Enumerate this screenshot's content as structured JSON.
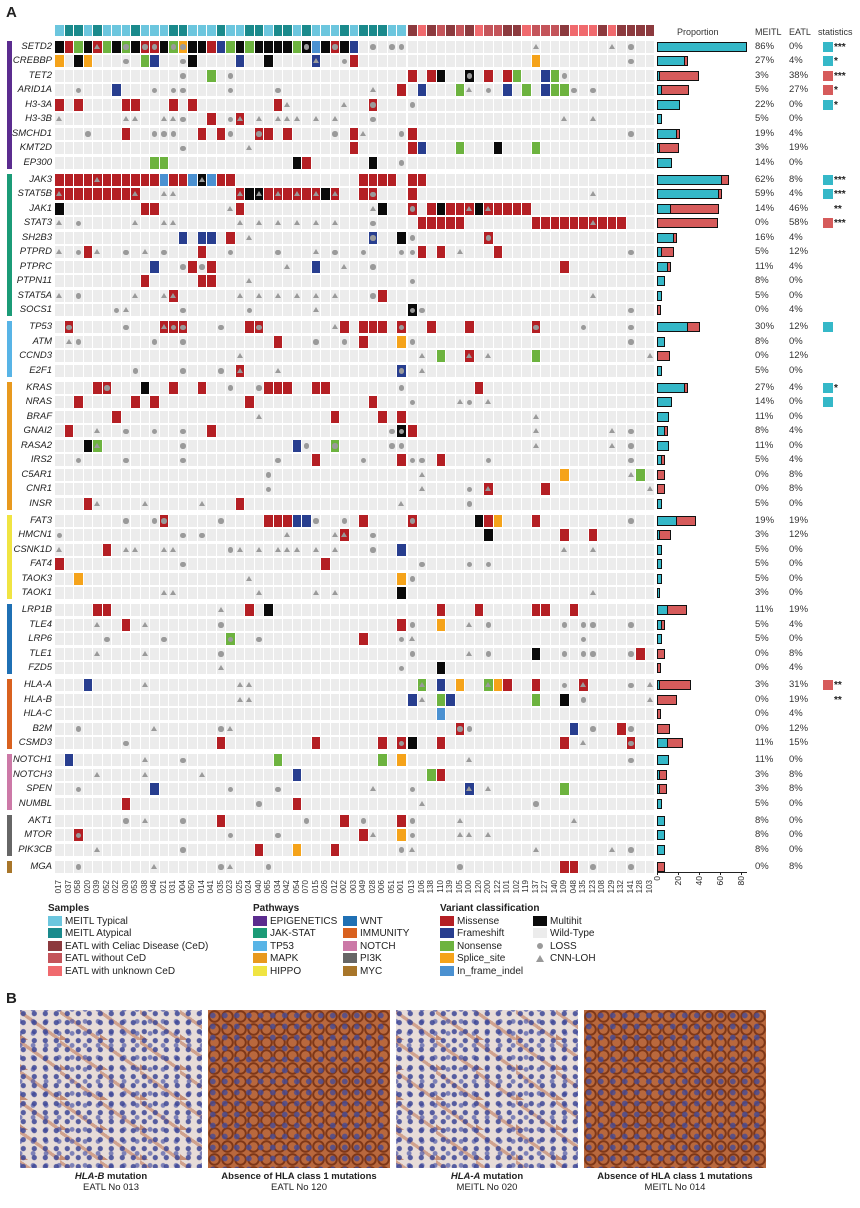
{
  "panel_a_label": "A",
  "panel_b_label": "B",
  "headers": {
    "proportion": "Proportion",
    "meitl": "MEITL",
    "eatl": "EATL",
    "statistics": "statistics"
  },
  "colors": {
    "meitl_bar": "#35b8c8",
    "eatl_bar": "#d65b5b",
    "missense": "#b41f24",
    "frameshift": "#283e8f",
    "nonsense": "#6db33f",
    "splice_site": "#f5a31a",
    "in_frame_indel": "#4b91d1",
    "multihit": "#0a0a0a",
    "wild_type": "#ececec",
    "marker": "#9a9a9a",
    "meitl_typical": "#6cc6de",
    "meitl_atypical": "#1a8a8c",
    "eatl_celiac": "#8c3a3e",
    "eatl_without_ced": "#c4545a",
    "eatl_unknown_ced": "#f06a6e"
  },
  "pathways": [
    {
      "name": "EPIGENETICS",
      "color": "#5b2c8f"
    },
    {
      "name": "JAK-STAT",
      "color": "#1b9b77"
    },
    {
      "name": "TP53",
      "color": "#58b4e6"
    },
    {
      "name": "MAPK",
      "color": "#e8991e"
    },
    {
      "name": "HIPPO",
      "color": "#f0e442"
    },
    {
      "name": "WNT",
      "color": "#1f70b4"
    },
    {
      "name": "IMMUNITY",
      "color": "#d9611f"
    },
    {
      "name": "NOTCH",
      "color": "#cc79a7"
    },
    {
      "name": "PI3K",
      "color": "#666666"
    },
    {
      "name": "MYC",
      "color": "#a8762a"
    }
  ],
  "samples": {
    "meitl_ids": [
      "017",
      "037",
      "058",
      "020",
      "039",
      "052",
      "022",
      "030",
      "053",
      "038",
      "046",
      "021",
      "031",
      "004",
      "050",
      "014",
      "041",
      "035",
      "023",
      "025",
      "024",
      "040",
      "065",
      "034",
      "042",
      "054",
      "070",
      "015",
      "026",
      "012",
      "002",
      "003",
      "049",
      "028",
      "006",
      "051",
      "001"
    ],
    "meitl_types": [
      "typical",
      "atypical",
      "atypical",
      "typical",
      "atypical",
      "typical",
      "typical",
      "typical",
      "atypical",
      "typical",
      "typical",
      "typical",
      "atypical",
      "atypical",
      "typical",
      "typical",
      "typical",
      "atypical",
      "typical",
      "typical",
      "atypical",
      "atypical",
      "typical",
      "atypical",
      "atypical",
      "typical",
      "atypical",
      "typical",
      "typical",
      "typical",
      "atypical",
      "typical",
      "atypical",
      "atypical",
      "atypical",
      "typical",
      "typical"
    ],
    "eatl_ids": [
      "013",
      "106",
      "138",
      "110",
      "139",
      "105",
      "100",
      "120",
      "200",
      "122",
      "101",
      "102",
      "119",
      "137",
      "127",
      "140",
      "109",
      "048",
      "135",
      "123",
      "108",
      "129",
      "132",
      "141",
      "128",
      "103"
    ],
    "eatl_types": [
      "celiac",
      "unknown",
      "celiac",
      "without",
      "celiac",
      "without",
      "celiac",
      "unknown",
      "without",
      "without",
      "celiac",
      "celiac",
      "unknown",
      "without",
      "without",
      "without",
      "celiac",
      "unknown",
      "unknown",
      "unknown",
      "celiac",
      "unknown",
      "celiac",
      "celiac",
      "celiac",
      "celiac"
    ]
  },
  "genes": [
    {
      "name": "SETD2",
      "pathway": 0,
      "meitl": "XMNXtNXnXmmXnsXXMFNXNXXXXNxIXmXF.o.oo",
      "eatl": ".............^.......^.o..",
      "meitl_pct": "86%",
      "eatl_pct": "0%",
      "stat_color": "#35b8c8",
      "stars": "***"
    },
    {
      "name": "CREBBP",
      "pathway": 0,
      "meitl": "S.XS...o.NF..oX....F..X....b..oM.....",
      "eatl": ".............S.........o..",
      "meitl_pct": "27%",
      "eatl_pct": "4%",
      "stat_color": "#35b8c8",
      "stars": "*"
    },
    {
      "name": "TET2",
      "pathway": 0,
      "meitl": ".............o..N.o..................",
      "eatl": "M.MX..x.M.MN..FNo.........",
      "meitl_pct": "3%",
      "eatl_pct": "38%",
      "stat_color": "#d65b5b",
      "stars": "***"
    },
    {
      "name": "ARID1A",
      "pathway": 0,
      "meitl": "..o...F...o.oo....o....o.........^..M",
      "eatl": ".F...N^.o.F.N.FNNo.o......",
      "meitl_pct": "5%",
      "eatl_pct": "27%",
      "stat_color": "#d65b5b",
      "stars": "*"
    },
    {
      "name": "H3-3A",
      "pathway": 0,
      "meitl": "M.M....MM...M.M........M^.....^..m...",
      "eatl": "o.........................",
      "meitl_pct": "22%",
      "eatl_pct": "0%",
      "stat_color": "#35b8c8",
      "stars": "*"
    },
    {
      "name": "H3-3B",
      "pathway": 0,
      "meitl": "^......^^..^^o..M.ot.^.^^^.^.^...o...",
      "eatl": "................^..^......",
      "meitl_pct": "5%",
      "eatl_pct": "0%",
      "stat_color": "",
      "stars": ""
    },
    {
      "name": "SMCHD1",
      "pathway": 0,
      "meitl": "...o...M..ooo..M.Mo..mM.M....o.M^...o",
      "eatl": "M......................o..",
      "meitl_pct": "19%",
      "eatl_pct": "4%",
      "stat_color": "",
      "stars": ""
    },
    {
      "name": "KMT2D",
      "pathway": 0,
      "meitl": ".............o......^..........M......",
      "eatl": "MF...N...X...N............",
      "meitl_pct": "3%",
      "eatl_pct": "19%",
      "stat_color": "",
      "stars": ""
    },
    {
      "name": "EP300",
      "pathway": 0,
      "meitl": "..........NN.............XM......X..o",
      "eatl": "..........................",
      "meitl_pct": "14%",
      "eatl_pct": "0%",
      "stat_color": "",
      "stars": ""
    },
    {
      "name": "JAK3",
      "pathway": 1,
      "meitl": "MMMMtMMMMMMIMMIyIMM.............MMMM.",
      "eatl": "MM........................",
      "meitl_pct": "62%",
      "eatl_pct": "8%",
      "stat_color": "#35b8c8",
      "stars": "***"
    },
    {
      "name": "STAT5B",
      "pathway": 1,
      "meitl": "tMMMMMMMt..^^......tXyMtMtMtXt..Mm...",
      "eatl": "M..................^......",
      "meitl_pct": "59%",
      "eatl_pct": "4%",
      "stat_color": "#35b8c8",
      "stars": "***"
    },
    {
      "name": "JAK1",
      "pathway": 1,
      "meitl": "X........MM.......^M.............^X..",
      "eatl": "m.MXMMtXtMMMM.............",
      "meitl_pct": "14%",
      "eatl_pct": "46%",
      "stat_color": "",
      "stars": "**"
    },
    {
      "name": "STAT3",
      "pathway": 1,
      "meitl": "^.o.....^..^^......^.^.^.^.^.^...o...",
      "eatl": ".MMMMM.......MMMMMMtMMM...",
      "meitl_pct": "0%",
      "eatl_pct": "58%",
      "stat_color": "#d65b5b",
      "stars": "***"
    },
    {
      "name": "SH2B3",
      "pathway": 1,
      "meitl": ".............F.FF.M.^............g..X",
      "eatl": "o.......m.................",
      "meitl_pct": "16%",
      "eatl_pct": "4%",
      "stat_color": "",
      "stars": ""
    },
    {
      "name": "PTPRD",
      "pathway": 1,
      "meitl": "^.oM^..o.^.o...M..o....o...^.o..o...o",
      "eatl": "oM.M.^...M.............o..",
      "meitl_pct": "5%",
      "eatl_pct": "12%",
      "stat_color": "",
      "stars": ""
    },
    {
      "name": "PTPRC",
      "pathway": 1,
      "meitl": "..........F..oMoM.......^..F..^..o...",
      "eatl": "................M.........",
      "meitl_pct": "11%",
      "eatl_pct": "4%",
      "stat_color": "",
      "stars": ""
    },
    {
      "name": "PTPN11",
      "pathway": 1,
      "meitl": ".........M.....MM...^................",
      "eatl": "o.........................",
      "meitl_pct": "8%",
      "eatl_pct": "0%",
      "stat_color": "",
      "stars": ""
    },
    {
      "name": "STAT5A",
      "pathway": 1,
      "meitl": "^.o.....^..^t......^.^.^.^.^.^...oM..",
      "eatl": "...................^......",
      "meitl_pct": "5%",
      "eatl_pct": "0%",
      "stat_color": "",
      "stars": ""
    },
    {
      "name": "SOCS1",
      "pathway": 1,
      "meitl": "......o^.....o......o......^.........",
      "eatl": "xo.....................o..",
      "meitl_pct": "0%",
      "eatl_pct": "4%",
      "stat_color": "",
      "stars": ""
    },
    {
      "name": "TP53",
      "pathway": 2,
      "meitl": ".m.....o...tmm...o..Mm.......^M.MMM.m",
      "eatl": "..M...M......m....o....o..",
      "meitl_pct": "30%",
      "eatl_pct": "12%",
      "stat_color": "#35b8c8",
      "stars": ""
    },
    {
      "name": "ATM",
      "pathway": 2,
      "meitl": ".^o.......o..o.........M...o..o.M...S",
      "eatl": "o......................o..",
      "meitl_pct": "8%",
      "eatl_pct": "0%",
      "stat_color": "",
      "stars": ""
    },
    {
      "name": "CCND3",
      "pathway": 2,
      "meitl": "...................^.................",
      "eatl": ".^.N..t.^....N...........^",
      "meitl_pct": "0%",
      "eatl_pct": "12%",
      "stat_color": "",
      "stars": ""
    },
    {
      "name": "E2F1",
      "pathway": 2,
      "meitl": "........o....o...o.t...^............g",
      "eatl": ".^........................",
      "meitl_pct": "5%",
      "eatl_pct": "0%",
      "stat_color": "",
      "stars": ""
    },
    {
      "name": "KRAS",
      "pathway": 3,
      "meitl": "....Mm...X..M..M..o..oMMM..MM.......o",
      "eatl": ".......M..................",
      "meitl_pct": "27%",
      "eatl_pct": "4%",
      "stat_color": "#35b8c8",
      "stars": "*"
    },
    {
      "name": "NRAS",
      "pathway": 3,
      "meitl": "..M.....M.M.........M............M...",
      "eatl": "o....^o.^.................",
      "meitl_pct": "14%",
      "eatl_pct": "0%",
      "stat_color": "#35b8c8",
      "stars": ""
    },
    {
      "name": "BRAF",
      "pathway": 3,
      "meitl": "......M..............^.......M....M.M",
      "eatl": ".............^............",
      "meitl_pct": "11%",
      "eatl_pct": "0%",
      "stat_color": "",
      "stars": ""
    },
    {
      "name": "GNAI2",
      "pathway": 3,
      "meitl": ".M..^..o..o..o..M..................ox",
      "eatl": "M............^.......^.o..",
      "meitl_pct": "8%",
      "eatl_pct": "4%",
      "stat_color": "",
      "stars": ""
    },
    {
      "name": "RASA2",
      "pathway": 3,
      "meitl": "...Xv........o...........Fo..n.....oo",
      "eatl": ".............^.......^.o..",
      "meitl_pct": "11%",
      "eatl_pct": "0%",
      "stat_color": "",
      "stars": ""
    },
    {
      "name": "IRS2",
      "pathway": 3,
      "meitl": "..o....o.....o.........o...M....o...M",
      "eatl": "oo.M....o..............o..",
      "meitl_pct": "5%",
      "eatl_pct": "4%",
      "stat_color": "",
      "stars": ""
    },
    {
      "name": "C5AR1",
      "pathway": 3,
      "meitl": "......................o..............",
      "eatl": ".^..............S......^N.",
      "meitl_pct": "0%",
      "eatl_pct": "8%",
      "stat_color": "",
      "stars": ""
    },
    {
      "name": "CNR1",
      "pathway": 3,
      "meitl": "......................o..............",
      "eatl": ".^....o.t.....M..........^",
      "meitl_pct": "0%",
      "eatl_pct": "8%",
      "stat_color": "",
      "stars": ""
    },
    {
      "name": "INSR",
      "pathway": 3,
      "meitl": "...M^....^.....^...M................^",
      "eatl": "......o...................",
      "meitl_pct": "5%",
      "eatl_pct": "0%",
      "stat_color": "",
      "stars": ""
    },
    {
      "name": "FAT3",
      "pathway": 4,
      "meitl": ".......o..om.....o....MMMFFo..o.M....",
      "eatl": "m......XMS...M.........o..",
      "meitl_pct": "19%",
      "eatl_pct": "19%",
      "stat_color": "",
      "stars": ""
    },
    {
      "name": "HMCN1",
      "pathway": 4,
      "meitl": "o............o.o........^....^t..o...",
      "eatl": "........X.......M..M......",
      "meitl_pct": "3%",
      "eatl_pct": "12%",
      "stat_color": "",
      "stars": ""
    },
    {
      "name": "CSNK1D",
      "pathway": 4,
      "meitl": "^....M.^^..^^.....o^.^.^^^.^.^...o..F",
      "eatl": "................^..^......",
      "meitl_pct": "5%",
      "eatl_pct": "0%",
      "stat_color": "",
      "stars": ""
    },
    {
      "name": "FAT4",
      "pathway": 4,
      "meitl": "M............o..............M........",
      "eatl": ".o....o.o.................",
      "meitl_pct": "5%",
      "eatl_pct": "0%",
      "stat_color": "",
      "stars": ""
    },
    {
      "name": "TAOK3",
      "pathway": 4,
      "meitl": "..S.................^...............S",
      "eatl": "o.........................",
      "meitl_pct": "5%",
      "eatl_pct": "0%",
      "stat_color": "",
      "stars": ""
    },
    {
      "name": "TAOK1",
      "pathway": 4,
      "meitl": "...........^^........^.....^.^......X",
      "eatl": "...................^......",
      "meitl_pct": "3%",
      "eatl_pct": "0%",
      "stat_color": "",
      "stars": ""
    },
    {
      "name": "LRP1B",
      "pathway": 5,
      "meitl": "....MM...........^..M.X..............",
      "eatl": "...M...M.....MM..M........",
      "meitl_pct": "11%",
      "eatl_pct": "19%",
      "stat_color": "",
      "stars": ""
    },
    {
      "name": "TLE4",
      "pathway": 5,
      "meitl": "....^..M.^.......o..................M",
      "eatl": "o..S..^.o.......o.oo...o..",
      "meitl_pct": "5%",
      "eatl_pct": "4%",
      "stat_color": "",
      "stars": ""
    },
    {
      "name": "LRP6",
      "pathway": 5,
      "meitl": ".....o.....o......n..o..........M...o",
      "eatl": "^.................o.......",
      "meitl_pct": "5%",
      "eatl_pct": "0%",
      "stat_color": "",
      "stars": ""
    },
    {
      "name": "TLE1",
      "pathway": 5,
      "meitl": "....^....^.......o...................",
      "eatl": "o.....^.o....X..o.oo...oM.",
      "meitl_pct": "0%",
      "eatl_pct": "8%",
      "stat_color": "",
      "stars": ""
    },
    {
      "name": "FZD5",
      "pathway": 5,
      "meitl": ".................^..................o",
      "eatl": "...X......................",
      "meitl_pct": "0%",
      "eatl_pct": "4%",
      "stat_color": "",
      "stars": ""
    },
    {
      "name": "HLA-A",
      "pathway": 6,
      "meitl": "...F.....^.........^^................",
      "eatl": ".v.F.S..vSM..M..o.t....o.^",
      "meitl_pct": "3%",
      "eatl_pct": "31%",
      "stat_color": "#d65b5b",
      "stars": "**"
    },
    {
      "name": "HLA-B",
      "pathway": 6,
      "meitl": "...................^^................",
      "eatl": "F^.NF........N..X.o......^",
      "meitl_pct": "0%",
      "eatl_pct": "19%",
      "stat_color": "",
      "stars": "**"
    },
    {
      "name": "HLA-C",
      "pathway": 6,
      "meitl": ".....................................",
      "eatl": "...I......................",
      "meitl_pct": "0%",
      "eatl_pct": "4%",
      "stat_color": "",
      "stars": ""
    },
    {
      "name": "B2M",
      "pathway": 6,
      "meitl": "..o.......^......o^..................",
      "eatl": ".....mo..........F.o..Mo..",
      "meitl_pct": "0%",
      "eatl_pct": "12%",
      "stat_color": "",
      "stars": ""
    },
    {
      "name": "CSMD3",
      "pathway": 6,
      "meitl": ".......o.........M.........M......M.m",
      "eatl": "X..M............M.^....m..",
      "meitl_pct": "11%",
      "eatl_pct": "15%",
      "stat_color": "",
      "stars": ""
    },
    {
      "name": "NOTCH1",
      "pathway": 7,
      "meitl": ".F.......^...o.........N..........N.S",
      "eatl": "......^................o..",
      "meitl_pct": "11%",
      "eatl_pct": "0%",
      "stat_color": "",
      "stars": ""
    },
    {
      "name": "NOTCH3",
      "pathway": 7,
      "meitl": "....^....^.....^.........F...........",
      "eatl": "..NM......................",
      "meitl_pct": "3%",
      "eatl_pct": "8%",
      "stat_color": "",
      "stars": ""
    },
    {
      "name": "SPEN",
      "pathway": 7,
      "meitl": "..o.......F.......o....o.........^...",
      "eatl": "o.....b.^.......N.........",
      "meitl_pct": "3%",
      "eatl_pct": "8%",
      "stat_color": "",
      "stars": ""
    },
    {
      "name": "NUMBL",
      "pathway": 7,
      "meitl": ".......M.............o...M...........",
      "eatl": ".^...........o............",
      "meitl_pct": "5%",
      "eatl_pct": "0%",
      "stat_color": "",
      "stars": ""
    },
    {
      "name": "AKT1",
      "pathway": 8,
      "meitl": ".......o.^...o...M........o...M.o...M",
      "eatl": "o....^...........^........",
      "meitl_pct": "8%",
      "eatl_pct": "0%",
      "stat_color": "",
      "stars": ""
    },
    {
      "name": "MTOR",
      "pathway": 8,
      "meitl": "..m...............o....o........M^..S",
      "eatl": "o....^^.^.................",
      "meitl_pct": "8%",
      "eatl_pct": "0%",
      "stat_color": "",
      "stars": ""
    },
    {
      "name": "PIK3CB",
      "pathway": 8,
      "meitl": "....^........o.......M...S...M......o",
      "eatl": "^............^.......^.o..",
      "meitl_pct": "8%",
      "eatl_pct": "0%",
      "stat_color": "",
      "stars": ""
    },
    {
      "name": "MGA",
      "pathway": 9,
      "meitl": "..o.......^......o^...o..............",
      "eatl": ".....o..........MM.o...o..",
      "meitl_pct": "0%",
      "eatl_pct": "8%",
      "stat_color": "",
      "stars": ""
    }
  ],
  "axis": {
    "ticks": [
      "0",
      "20",
      "40",
      "60",
      "80"
    ],
    "range": [
      0,
      90
    ]
  },
  "legend": {
    "samples_title": "Samples",
    "samples": [
      {
        "label": "MEITL Typical",
        "color": "#6cc6de"
      },
      {
        "label": "MEITL Atypical",
        "color": "#1a8a8c"
      },
      {
        "label": "EATL with Celiac Disease (CeD)",
        "color": "#8c3a3e"
      },
      {
        "label": "EATL without CeD",
        "color": "#c4545a"
      },
      {
        "label": "EATL with unknown CeD",
        "color": "#f06a6e"
      }
    ],
    "pathways_title": "Pathways",
    "variants_title": "Variant classification",
    "variants": [
      {
        "label": "Missense",
        "color": "#b41f24",
        "glyph": "square"
      },
      {
        "label": "Frameshift",
        "color": "#283e8f",
        "glyph": "square"
      },
      {
        "label": "Nonsense",
        "color": "#6db33f",
        "glyph": "square"
      },
      {
        "label": "Splice_site",
        "color": "#f5a31a",
        "glyph": "square"
      },
      {
        "label": "In_frame_indel",
        "color": "#4b91d1",
        "glyph": "square"
      },
      {
        "label": "Multihit",
        "color": "#0a0a0a",
        "glyph": "square"
      },
      {
        "label": "Wild-Type",
        "color": "#ececec",
        "glyph": "square"
      },
      {
        "label": "LOSS",
        "color": "#9a9a9a",
        "glyph": "circle"
      },
      {
        "label": "CNN-LOH",
        "color": "#9a9a9a",
        "glyph": "triangle"
      }
    ]
  },
  "panel_b": [
    {
      "gene": "HLA-B",
      "title": " mutation",
      "subtitle": "EATL No 013",
      "stain": "weak"
    },
    {
      "gene": "",
      "title": "Absence of HLA class 1 mutations",
      "subtitle": "EATL No 120",
      "stain": "strong"
    },
    {
      "gene": "HLA-A",
      "title": " mutation",
      "subtitle": "MEITL No 020",
      "stain": "weak"
    },
    {
      "gene": "",
      "title": "Absence of HLA class 1 mutations",
      "subtitle": "MEITL No 014",
      "stain": "strong"
    }
  ]
}
